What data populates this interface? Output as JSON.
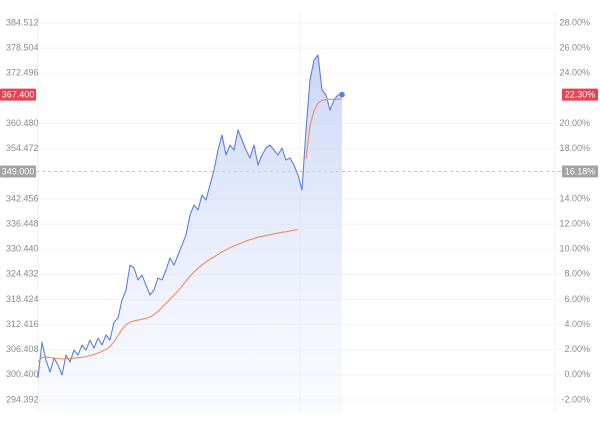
{
  "chart_data": {
    "type": "line",
    "ylim": [
      294.392,
      384.512
    ],
    "yticks": [
      384.512,
      378.504,
      372.496,
      {
        "value": 360.48,
        "label": "360.480"
      },
      354.472,
      342.456,
      336.448,
      {
        "value": 330.44,
        "label": "330.440"
      },
      324.432,
      318.424,
      312.416,
      306.408,
      {
        "value": 300.4,
        "label": "300.400"
      },
      294.392
    ],
    "y2lim": [
      -2,
      28
    ],
    "y2ticks": [
      {
        "value": 28,
        "label": "28.00%"
      },
      {
        "value": 26,
        "label": "26.00%"
      },
      {
        "value": 24,
        "label": "24.00%"
      },
      {
        "value": 20,
        "label": "20.00%"
      },
      {
        "value": 18,
        "label": "18.00%"
      },
      {
        "value": 14,
        "label": "14.00%"
      },
      {
        "value": 12,
        "label": "12.00%"
      },
      {
        "value": 10,
        "label": "10.00%"
      },
      {
        "value": 8,
        "label": "8.00%"
      },
      {
        "value": 6,
        "label": "6.00%"
      },
      {
        "value": 4,
        "label": "4.00%"
      },
      {
        "value": 2,
        "label": "2.00%"
      },
      {
        "value": 0,
        "label": "0.00%"
      },
      {
        "value": -2,
        "label": "-2.00%"
      }
    ],
    "current_price": {
      "value": 367.4,
      "label": "367.400"
    },
    "current_change": {
      "value": 22.3,
      "label": "22.30%"
    },
    "prev_close": {
      "value": 349,
      "label": "349.000"
    },
    "prev_change": {
      "value": 16.18,
      "label": "16.18%"
    },
    "grid": true,
    "series": [
      {
        "color": "#5b7fdc",
        "area": true,
        "values": [
          299.64,
          308.24,
          303.94,
          301.07,
          304.42,
          302.74,
          300.35,
          305.14,
          303.46,
          306.33,
          305.14,
          307.53,
          306.33,
          308.72,
          306.81,
          309.2,
          307.53,
          309.92,
          308.72,
          313.03,
          313.98,
          318.29,
          320.68,
          326.65,
          325.94,
          323.07,
          324.26,
          321.87,
          319.48,
          320.68,
          323.55,
          323.07,
          325.46,
          328.33,
          326.65,
          329.04,
          331.43,
          333.83,
          338.61,
          341.0,
          339.8,
          343.39,
          342.19,
          345.78,
          349.37,
          354.15,
          357.73,
          352.95,
          355.34,
          354.15,
          358.93,
          356.54,
          354.15,
          352.23,
          355.34,
          350.56,
          352.95,
          354.62,
          355.34,
          354.15,
          352.95,
          354.62,
          351.76,
          352.23,
          350.56,
          348.17,
          344.58,
          358.93,
          370.88,
          375.66,
          376.86,
          368.49,
          367.3,
          363.71,
          366.1,
          367.3,
          367.4
        ]
      },
      {
        "color": "#f08a5d",
        "area": false,
        "values": [
          303.5,
          304.5,
          304.7,
          304.5,
          304.4,
          304.3,
          304.2,
          304.3,
          304.3,
          304.4,
          304.5,
          304.6,
          304.8,
          305.0,
          305.3,
          305.6,
          306.0,
          306.5,
          307.2,
          308.3,
          309.8,
          311.3,
          312.4,
          313.0,
          313.3,
          313.5,
          313.7,
          313.9,
          314.2,
          314.8,
          315.6,
          316.5,
          317.5,
          318.5,
          319.5,
          320.5,
          321.6,
          322.8,
          324.0,
          325.0,
          325.9,
          326.7,
          327.4,
          328.0,
          328.6,
          329.2,
          329.8,
          330.3,
          330.8,
          331.2,
          331.6,
          332.0,
          332.4,
          332.7,
          333.0,
          333.3,
          333.5,
          333.7,
          333.9,
          334.1,
          334.3,
          334.5,
          334.6,
          334.8,
          335.0,
          335.1,
          null,
          352.0,
          360.0,
          363.5,
          365.4,
          366.0,
          366.2,
          366.3,
          366.2,
          366.3,
          366.4
        ]
      }
    ]
  }
}
